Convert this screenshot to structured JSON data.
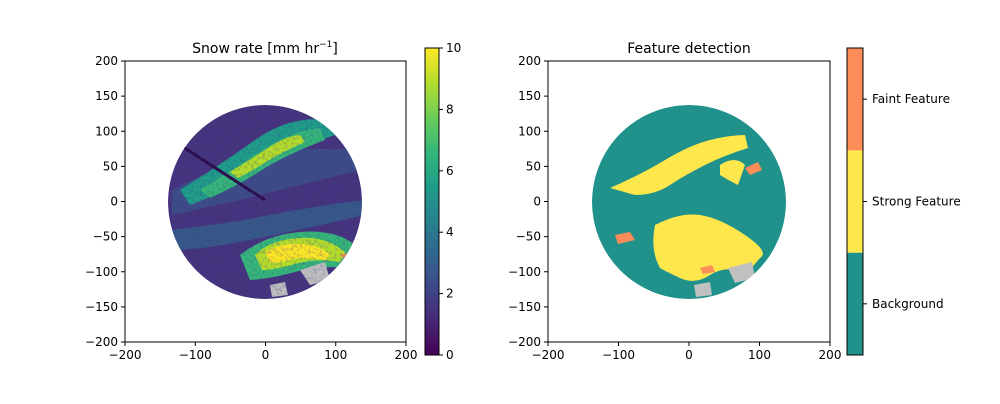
{
  "chart_data": [
    {
      "type": "heatmap",
      "title": "Snow rate [mm hr",
      "title_sup": "−1",
      "title_end": "]",
      "xlim": [
        -200,
        200
      ],
      "ylim": [
        -200,
        200
      ],
      "xticks": [
        "−200",
        "−100",
        "0",
        "100",
        "200"
      ],
      "yticks": [
        "200",
        "150",
        "100",
        "50",
        "0",
        "−50",
        "−100",
        "−150",
        "−200"
      ],
      "colorbar": {
        "colormap": "viridis",
        "range": [
          0,
          10
        ],
        "ticks": [
          "0",
          "2",
          "4",
          "6",
          "8",
          "10"
        ],
        "colors": [
          "#440154",
          "#482878",
          "#3e4989",
          "#31688e",
          "#26828e",
          "#1f9e89",
          "#35b779",
          "#6ece58",
          "#b5de2b",
          "#fde725"
        ]
      },
      "data_extent": "circle of radius ~140 centered at (0,0)",
      "bands": [
        {
          "desc": "strong band from (-120,45) to (40,150)",
          "approx_value": 7
        },
        {
          "desc": "strong band from (0,-85) to (120,-45)",
          "approx_value": 9
        }
      ]
    },
    {
      "type": "heatmap",
      "title": "Feature detection",
      "xlim": [
        -200,
        200
      ],
      "ylim": [
        -200,
        200
      ],
      "xticks": [
        "−200",
        "−100",
        "0",
        "100",
        "200"
      ],
      "yticks": [
        "200",
        "150",
        "100",
        "50",
        "0",
        "−50",
        "−100",
        "−150",
        "−200"
      ],
      "colorbar": {
        "categories": [
          "Background",
          "Strong Feature",
          "Faint Feature"
        ],
        "colors": [
          "#21918c",
          "#fde74c",
          "#fc8d59"
        ]
      },
      "no_data_color": "#c0c0c0"
    }
  ]
}
